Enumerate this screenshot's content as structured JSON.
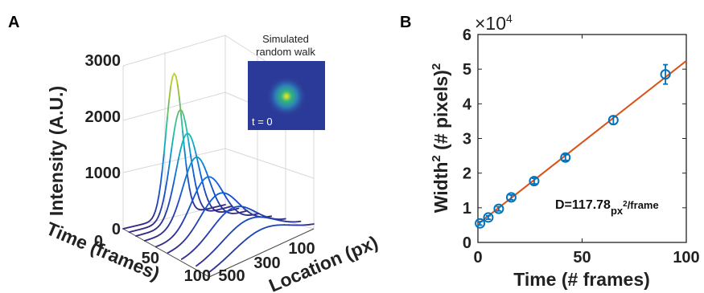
{
  "panels": {
    "left_letter": "A",
    "right_letter": "B"
  },
  "inset": {
    "title_line1": "Simulated",
    "title_line2": "random walk",
    "time_label": "t = 0"
  },
  "colors": {
    "fit_line": "#d95319",
    "markers": "#0072bd",
    "inset_bg": "#2b3a98"
  },
  "chart_data": [
    {
      "type": "line",
      "subtype": "3d-waterfall",
      "xlabel": "Location (px)",
      "ylabel": "Time (frames)",
      "zlabel": "Intensity (A.U.)",
      "location_ticks": [
        "100",
        "300",
        "500"
      ],
      "time_ticks": [
        "0",
        "50",
        "100"
      ],
      "intensity_ticks": [
        "0",
        "1000",
        "2000",
        "3000"
      ],
      "zlim": [
        0,
        3000
      ],
      "series": [
        {
          "time": 0,
          "peak": 2550
        },
        {
          "time": 7,
          "peak": 1950
        },
        {
          "time": 15,
          "peak": 1580
        },
        {
          "time": 25,
          "peak": 1220
        },
        {
          "time": 38,
          "peak": 950
        },
        {
          "time": 52,
          "peak": 750
        },
        {
          "time": 68,
          "peak": 600
        },
        {
          "time": 85,
          "peak": 500
        },
        {
          "time": 100,
          "peak": 420
        }
      ],
      "colormap": "parula",
      "grid": true
    },
    {
      "type": "scatter",
      "xlabel": "Time (# frames)",
      "ylabel_main": "Width",
      "ylabel_sup": "2",
      "ylabel_rest": " (# pixels)",
      "ylabel_sup2": "2",
      "exponent_label": "×10",
      "exponent_power": "4",
      "x_ticks": [
        "0",
        "50",
        "100"
      ],
      "y_ticks": [
        "0",
        "1",
        "2",
        "3",
        "4",
        "5",
        "6"
      ],
      "xlim": [
        0,
        100
      ],
      "ylim": [
        0,
        6
      ],
      "y_multiplier": 10000,
      "points": [
        {
          "x": 1,
          "y": 0.55
        },
        {
          "x": 5,
          "y": 0.72
        },
        {
          "x": 10,
          "y": 0.97
        },
        {
          "x": 16,
          "y": 1.3
        },
        {
          "x": 27,
          "y": 1.77
        },
        {
          "x": 42,
          "y": 2.45
        },
        {
          "x": 65,
          "y": 3.53
        },
        {
          "x": 90,
          "y": 4.85
        }
      ],
      "error_bars": [
        0.05,
        0.05,
        0.06,
        0.07,
        0.08,
        0.08,
        0.12,
        0.28
      ],
      "fit": {
        "x": [
          0,
          100
        ],
        "y": [
          0.53,
          5.24
        ]
      },
      "annotation_main": "D=117.78",
      "annotation_sub": "px",
      "annotation_sup": "2",
      "annotation_rest": "/frame"
    }
  ]
}
